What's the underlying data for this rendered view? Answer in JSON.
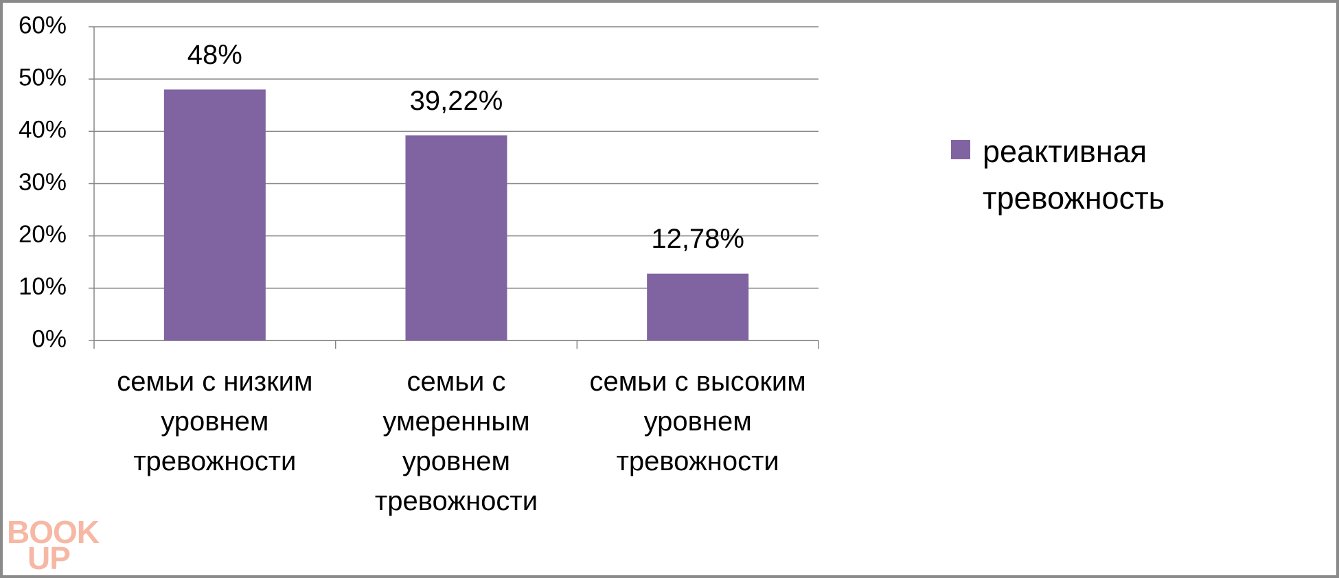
{
  "chart_data": {
    "type": "bar",
    "categories": [
      "семьи с низким уровнем тревожности",
      "семьи с умеренным уровнем тревожности",
      "семьи с высоким уровнем тревожности"
    ],
    "series": [
      {
        "name": "реактивная тревожность",
        "color": "#8064a2",
        "values": [
          48,
          39.22,
          12.78
        ],
        "value_labels": [
          "48%",
          "39,22%",
          "12,78%"
        ]
      }
    ],
    "ylim": [
      0,
      60
    ],
    "yticks": [
      {
        "value": 0,
        "label": "0%"
      },
      {
        "value": 10,
        "label": "10%"
      },
      {
        "value": 20,
        "label": "20%"
      },
      {
        "value": 30,
        "label": "30%"
      },
      {
        "value": 40,
        "label": "40%"
      },
      {
        "value": 50,
        "label": "50%"
      },
      {
        "value": 60,
        "label": "60%"
      }
    ],
    "grid": true,
    "legend": "right",
    "watermark": [
      "BOOK",
      "UP"
    ]
  }
}
